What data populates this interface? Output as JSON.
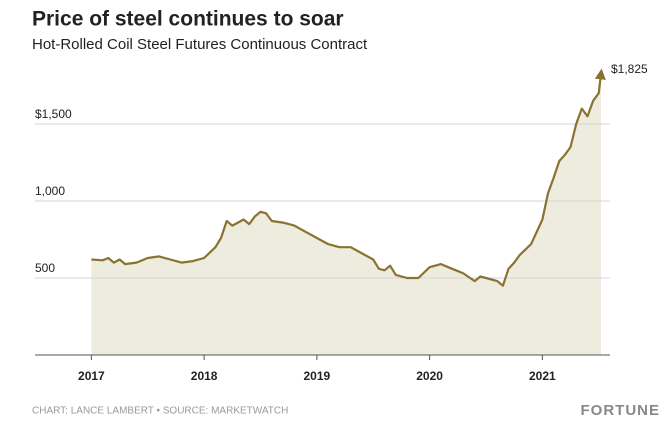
{
  "chart_data": {
    "type": "area",
    "title": "Price of steel continues to soar",
    "subtitle": "Hot-Rolled Coil Steel Futures Continuous Contract",
    "source": "CHART: LANCE LAMBERT • SOURCE: MARKETWATCH",
    "brand": "FORTUNE",
    "x": [
      2017.0,
      2017.1,
      2017.15,
      2017.2,
      2017.25,
      2017.3,
      2017.4,
      2017.5,
      2017.6,
      2017.7,
      2017.8,
      2017.9,
      2018.0,
      2018.1,
      2018.15,
      2018.2,
      2018.25,
      2018.3,
      2018.35,
      2018.4,
      2018.45,
      2018.5,
      2018.55,
      2018.6,
      2018.7,
      2018.8,
      2018.9,
      2019.0,
      2019.1,
      2019.2,
      2019.3,
      2019.4,
      2019.5,
      2019.55,
      2019.6,
      2019.65,
      2019.7,
      2019.8,
      2019.9,
      2020.0,
      2020.1,
      2020.2,
      2020.3,
      2020.4,
      2020.45,
      2020.5,
      2020.6,
      2020.65,
      2020.7,
      2020.75,
      2020.8,
      2020.9,
      2021.0,
      2021.05,
      2021.1,
      2021.15,
      2021.2,
      2021.25,
      2021.3,
      2021.35,
      2021.4,
      2021.45,
      2021.5,
      2021.52
    ],
    "values": [
      620,
      615,
      630,
      600,
      620,
      590,
      600,
      630,
      640,
      620,
      600,
      610,
      630,
      700,
      760,
      870,
      840,
      860,
      880,
      850,
      900,
      930,
      920,
      870,
      860,
      840,
      800,
      760,
      720,
      700,
      700,
      660,
      620,
      560,
      550,
      580,
      520,
      500,
      500,
      570,
      590,
      560,
      530,
      480,
      510,
      500,
      480,
      450,
      560,
      600,
      650,
      720,
      880,
      1050,
      1150,
      1260,
      1300,
      1350,
      1500,
      1600,
      1550,
      1650,
      1700,
      1825
    ],
    "value_labels": [
      null,
      null,
      null,
      null,
      null,
      null,
      null,
      null,
      null,
      null,
      null,
      null,
      null,
      null,
      null,
      null,
      null,
      null,
      null,
      null,
      null,
      null,
      null,
      null,
      null,
      null,
      null,
      null,
      null,
      null,
      null,
      null,
      null,
      null,
      null,
      null,
      null,
      null,
      null,
      null,
      null,
      null,
      null,
      null,
      null,
      null,
      null,
      null,
      null,
      null,
      null,
      null,
      null,
      null,
      null,
      null,
      null,
      null,
      null,
      null,
      null,
      null,
      null,
      "$1,825"
    ],
    "color": "#8a7330",
    "fill": "#eeebdf",
    "xlim": [
      2016.5,
      2021.6
    ],
    "xticks": [
      2017,
      2018,
      2019,
      2020,
      2021
    ],
    "ylim": [
      0,
      2000
    ],
    "yticks": [
      500,
      {
        "value": 1000,
        "label": "1,000"
      },
      {
        "value": 1500,
        "label": "$1,500"
      }
    ],
    "grid": true
  }
}
